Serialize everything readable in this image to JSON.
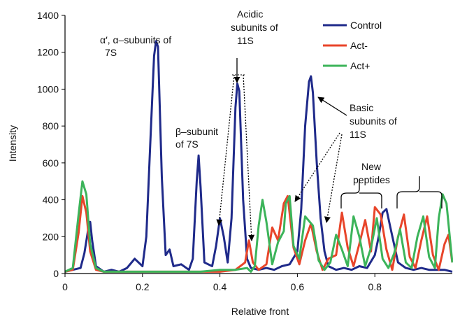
{
  "chart_data": {
    "type": "line",
    "xlabel": "Relative front",
    "ylabel": "Intensity",
    "xlim": [
      0,
      1
    ],
    "ylim": [
      0,
      1400
    ],
    "x_ticks": [
      0,
      0.2,
      0.4,
      0.6,
      0.8
    ],
    "x_tick_labels": [
      "0",
      "0.2",
      "0.4",
      "0.6",
      "0.8"
    ],
    "y_ticks": [
      0,
      200,
      400,
      600,
      800,
      1000,
      1200,
      1400
    ],
    "y_tick_labels": [
      "0",
      "200",
      "400",
      "600",
      "800",
      "1000",
      "1200",
      "1400"
    ],
    "grid": false,
    "legend_position": "top-right",
    "series": [
      {
        "name": "Control",
        "color": "#1f2a8a",
        "x": [
          0,
          0.02,
          0.04,
          0.05,
          0.06,
          0.065,
          0.07,
          0.08,
          0.1,
          0.12,
          0.14,
          0.16,
          0.18,
          0.2,
          0.21,
          0.22,
          0.23,
          0.235,
          0.24,
          0.25,
          0.26,
          0.27,
          0.28,
          0.3,
          0.32,
          0.33,
          0.34,
          0.345,
          0.35,
          0.36,
          0.38,
          0.39,
          0.4,
          0.41,
          0.42,
          0.43,
          0.44,
          0.445,
          0.45,
          0.46,
          0.47,
          0.48,
          0.5,
          0.52,
          0.54,
          0.56,
          0.58,
          0.6,
          0.61,
          0.62,
          0.63,
          0.635,
          0.64,
          0.65,
          0.66,
          0.67,
          0.68,
          0.7,
          0.72,
          0.74,
          0.76,
          0.78,
          0.8,
          0.81,
          0.82,
          0.83,
          0.84,
          0.86,
          0.88,
          0.9,
          0.92,
          0.94,
          0.96,
          0.98,
          1.0
        ],
        "y": [
          10,
          20,
          30,
          110,
          240,
          280,
          180,
          40,
          10,
          20,
          10,
          30,
          80,
          40,
          200,
          700,
          1180,
          1260,
          1230,
          520,
          100,
          130,
          40,
          50,
          20,
          80,
          500,
          640,
          470,
          60,
          40,
          150,
          300,
          200,
          60,
          300,
          900,
          1030,
          990,
          400,
          80,
          30,
          20,
          30,
          20,
          40,
          50,
          120,
          350,
          800,
          1040,
          1070,
          980,
          600,
          300,
          120,
          40,
          20,
          30,
          20,
          40,
          30,
          100,
          200,
          330,
          350,
          250,
          60,
          30,
          20,
          30,
          20,
          20,
          20,
          10
        ]
      },
      {
        "name": "Act-",
        "color": "#e8452a",
        "x": [
          0,
          0.02,
          0.035,
          0.045,
          0.055,
          0.065,
          0.08,
          0.1,
          0.2,
          0.3,
          0.38,
          0.4,
          0.44,
          0.465,
          0.475,
          0.485,
          0.5,
          0.52,
          0.535,
          0.55,
          0.565,
          0.575,
          0.59,
          0.605,
          0.62,
          0.635,
          0.65,
          0.665,
          0.68,
          0.7,
          0.715,
          0.73,
          0.745,
          0.76,
          0.775,
          0.79,
          0.8,
          0.815,
          0.83,
          0.845,
          0.86,
          0.875,
          0.89,
          0.905,
          0.92,
          0.935,
          0.95,
          0.965,
          0.98,
          0.99,
          1.0
        ],
        "y": [
          10,
          20,
          220,
          420,
          330,
          120,
          20,
          10,
          10,
          10,
          10,
          10,
          20,
          60,
          180,
          60,
          20,
          50,
          250,
          180,
          380,
          420,
          140,
          50,
          180,
          270,
          120,
          20,
          80,
          100,
          330,
          140,
          40,
          160,
          290,
          120,
          360,
          320,
          130,
          20,
          200,
          320,
          90,
          30,
          180,
          310,
          100,
          20,
          160,
          210,
          60
        ]
      },
      {
        "name": "Act+",
        "color": "#3cb45a",
        "x": [
          0,
          0.02,
          0.035,
          0.045,
          0.055,
          0.065,
          0.08,
          0.1,
          0.2,
          0.3,
          0.35,
          0.4,
          0.44,
          0.47,
          0.48,
          0.49,
          0.5,
          0.51,
          0.52,
          0.535,
          0.55,
          0.565,
          0.57,
          0.58,
          0.59,
          0.605,
          0.62,
          0.64,
          0.655,
          0.67,
          0.685,
          0.7,
          0.715,
          0.73,
          0.745,
          0.76,
          0.775,
          0.79,
          0.805,
          0.82,
          0.835,
          0.85,
          0.865,
          0.88,
          0.895,
          0.91,
          0.925,
          0.94,
          0.955,
          0.965,
          0.975,
          0.985,
          1.0
        ],
        "y": [
          10,
          30,
          320,
          500,
          430,
          160,
          30,
          10,
          10,
          10,
          10,
          20,
          20,
          30,
          10,
          40,
          260,
          400,
          280,
          50,
          170,
          230,
          380,
          420,
          150,
          80,
          310,
          260,
          70,
          20,
          60,
          210,
          130,
          40,
          310,
          200,
          40,
          140,
          300,
          80,
          30,
          110,
          240,
          60,
          30,
          200,
          310,
          90,
          30,
          300,
          430,
          380,
          60
        ]
      }
    ],
    "annotations": [
      {
        "lines": [
          "α′, α–subunits of",
          "7S"
        ]
      },
      {
        "lines": [
          "β–subunit",
          "of 7S"
        ]
      },
      {
        "lines": [
          "Acidic",
          "subunits of",
          "11S"
        ]
      },
      {
        "lines": [
          "Basic",
          "subunits of",
          "11S"
        ]
      },
      {
        "lines": [
          "New",
          "peptides"
        ]
      }
    ]
  }
}
